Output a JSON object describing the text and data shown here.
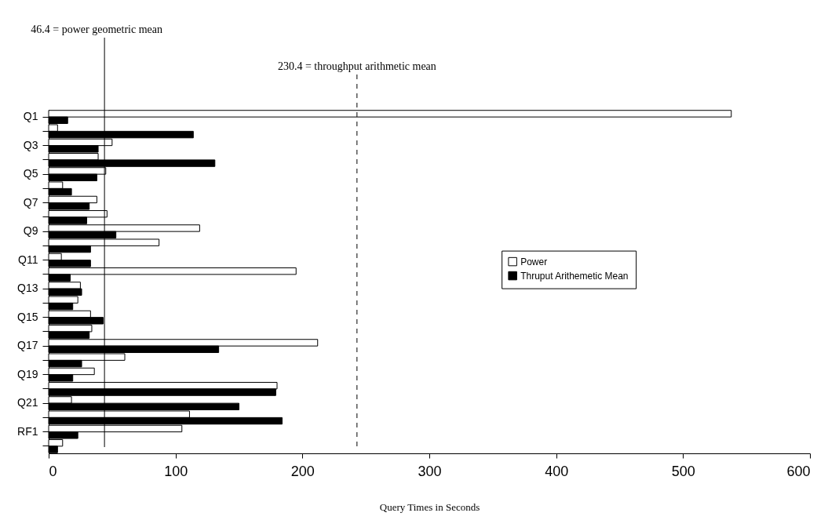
{
  "chart_data": {
    "type": "bar",
    "orientation": "horizontal",
    "xlabel": "Query Times in Seconds",
    "categories": [
      "Q1",
      null,
      "Q3",
      null,
      "Q5",
      null,
      "Q7",
      null,
      "Q9",
      null,
      "Q11",
      null,
      "Q13",
      null,
      "Q15",
      null,
      "Q17",
      null,
      "Q19",
      null,
      "Q21",
      null,
      "RF1",
      null
    ],
    "series": [
      {
        "name": "Power",
        "color": "#ffffff",
        "values": [
          538,
          7,
          50,
          39,
          45,
          11,
          38,
          46,
          119,
          87,
          10,
          195,
          25,
          23,
          33,
          34,
          212,
          60,
          36,
          180,
          18,
          111,
          105,
          11
        ]
      },
      {
        "name": "Thruput Arithemetic Mean",
        "color": "#000000",
        "values": [
          15,
          114,
          39,
          131,
          38,
          18,
          32,
          30,
          53,
          33,
          33,
          17,
          26,
          19,
          43,
          32,
          134,
          26,
          19,
          179,
          150,
          184,
          23,
          7
        ]
      }
    ],
    "xlim": [
      0,
      600
    ],
    "xticks": [
      0,
      100,
      200,
      300,
      400,
      500,
      600
    ],
    "ref_lines": [
      {
        "axis": "x",
        "value": 44,
        "label": "46.4 = power  geometric  mean",
        "line_style": "solid"
      },
      {
        "axis": "x",
        "value": 243,
        "label": "230.4 = throughput arithmetic mean",
        "line_style": "dashed"
      }
    ],
    "legend": "right",
    "grid": false
  }
}
